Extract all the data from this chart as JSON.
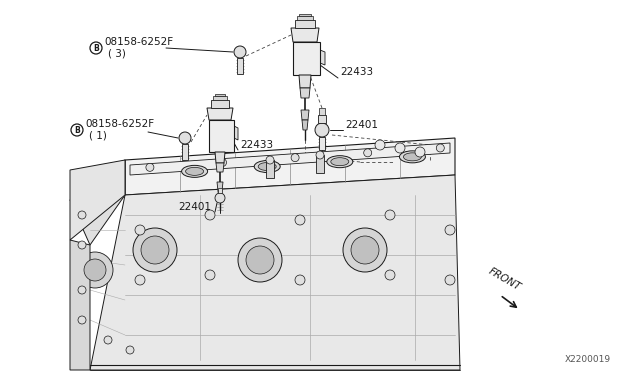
{
  "bg_color": "#ffffff",
  "lc": "#1a1a1a",
  "fig_width": 6.4,
  "fig_height": 3.72,
  "dpi": 100,
  "watermark": "X2200019",
  "front_label": "FRONT",
  "bolt_label": "08158-6252F",
  "bolt_qty_top": "( 3)",
  "bolt_qty_mid": "( 1)",
  "label_22433_top": "22433",
  "label_22433_mid": "22433",
  "label_22401_top": "22401",
  "label_22401_mid": "22401"
}
